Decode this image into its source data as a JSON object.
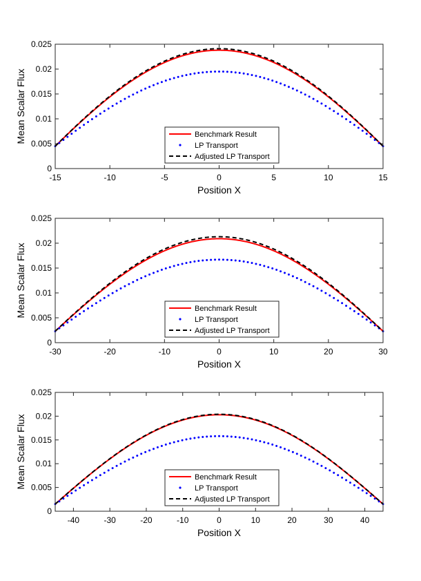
{
  "chart_data": [
    {
      "type": "line",
      "xlabel": "Position X",
      "ylabel": "Mean Scalar Flux",
      "xlim": [
        -15,
        15
      ],
      "ylim": [
        0,
        0.025
      ],
      "xticks": [
        -15,
        -10,
        -5,
        0,
        5,
        10,
        15
      ],
      "xtick_labels": [
        "-15",
        "-10",
        "-5",
        "0",
        "5",
        "10",
        "15"
      ],
      "yticks": [
        0,
        0.005,
        0.01,
        0.015,
        0.02,
        0.025
      ],
      "ytick_labels": [
        "0",
        "0.005",
        "0.01",
        "0.015",
        "0.02",
        "0.025"
      ],
      "legend_position": "bottom-center",
      "series": [
        {
          "name": "Benchmark Result",
          "style": "solid",
          "color": "#ff0000",
          "edge_value": 0.0045,
          "peak_value": 0.0238
        },
        {
          "name": "LP Transport",
          "style": "dotted",
          "color": "#0000ff",
          "edge_value": 0.0045,
          "peak_value": 0.0195
        },
        {
          "name": "Adjusted LP Transport",
          "style": "dashed",
          "color": "#000000",
          "edge_value": 0.0045,
          "peak_value": 0.0241
        }
      ]
    },
    {
      "type": "line",
      "xlabel": "Position X",
      "ylabel": "Mean Scalar Flux",
      "xlim": [
        -30,
        30
      ],
      "ylim": [
        0,
        0.025
      ],
      "xticks": [
        -30,
        -20,
        -10,
        0,
        10,
        20,
        30
      ],
      "xtick_labels": [
        "-30",
        "-20",
        "-10",
        "0",
        "10",
        "20",
        "30"
      ],
      "yticks": [
        0,
        0.005,
        0.01,
        0.015,
        0.02,
        0.025
      ],
      "ytick_labels": [
        "0",
        "0.005",
        "0.01",
        "0.015",
        "0.02",
        "0.025"
      ],
      "legend_position": "bottom-center",
      "series": [
        {
          "name": "Benchmark Result",
          "style": "solid",
          "color": "#ff0000",
          "edge_value": 0.0023,
          "peak_value": 0.0209
        },
        {
          "name": "LP Transport",
          "style": "dotted",
          "color": "#0000ff",
          "edge_value": 0.0023,
          "peak_value": 0.0167
        },
        {
          "name": "Adjusted LP Transport",
          "style": "dashed",
          "color": "#000000",
          "edge_value": 0.0023,
          "peak_value": 0.0213
        }
      ]
    },
    {
      "type": "line",
      "xlabel": "Position X",
      "ylabel": "Mean Scalar Flux",
      "xlim": [
        -45,
        45
      ],
      "ylim": [
        0,
        0.025
      ],
      "xticks": [
        -40,
        -30,
        -20,
        -10,
        0,
        10,
        20,
        30,
        40
      ],
      "xtick_labels": [
        "-40",
        "-30",
        "-20",
        "-10",
        "0",
        "10",
        "20",
        "30",
        "40"
      ],
      "yticks": [
        0,
        0.005,
        0.01,
        0.015,
        0.02,
        0.025
      ],
      "ytick_labels": [
        "0",
        "0.005",
        "0.01",
        "0.015",
        "0.02",
        "0.025"
      ],
      "legend_position": "bottom-center",
      "series": [
        {
          "name": "Benchmark Result",
          "style": "solid",
          "color": "#ff0000",
          "edge_value": 0.0015,
          "peak_value": 0.0203
        },
        {
          "name": "LP Transport",
          "style": "dotted",
          "color": "#0000ff",
          "edge_value": 0.0015,
          "peak_value": 0.0158
        },
        {
          "name": "Adjusted LP Transport",
          "style": "dashed",
          "color": "#000000",
          "edge_value": 0.0015,
          "peak_value": 0.0204
        }
      ]
    }
  ]
}
